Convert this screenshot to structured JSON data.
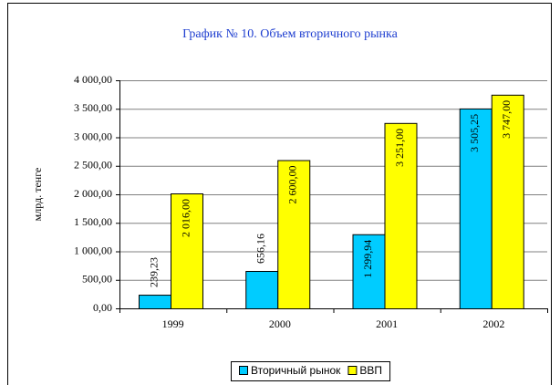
{
  "chart_data": {
    "type": "bar",
    "title": "График № 10. Объем вторичного рынка",
    "y_label": "млрд. тенге",
    "categories": [
      "1999",
      "2000",
      "2001",
      "2002"
    ],
    "series": [
      {
        "name": "Вторичный рынок",
        "color": "#00ccff",
        "values": [
          239.23,
          656.16,
          1299.94,
          3505.25
        ],
        "value_labels": [
          "239,23",
          "656,16",
          "1 299,94",
          "3 505,25"
        ]
      },
      {
        "name": "ВВП",
        "color": "#ffff00",
        "values": [
          2016,
          2600,
          3251,
          3747
        ],
        "value_labels": [
          "2 016,00",
          "2 600,00",
          "3 251,00",
          "3 747,00"
        ]
      }
    ],
    "ylim": [
      0,
      4000
    ],
    "yticks": [
      {
        "value": 0,
        "label": "0,00"
      },
      {
        "value": 500,
        "label": "500,00"
      },
      {
        "value": 1000,
        "label": "1 000,00"
      },
      {
        "value": 1500,
        "label": "1 500,00"
      },
      {
        "value": 2000,
        "label": "2 000,00"
      },
      {
        "value": 2500,
        "label": "2 500,00"
      },
      {
        "value": 3000,
        "label": "3 000,00"
      },
      {
        "value": 3500,
        "label": "3 500,00"
      },
      {
        "value": 4000,
        "label": "4 000,00"
      }
    ],
    "grid": true,
    "legend": "bottom"
  }
}
